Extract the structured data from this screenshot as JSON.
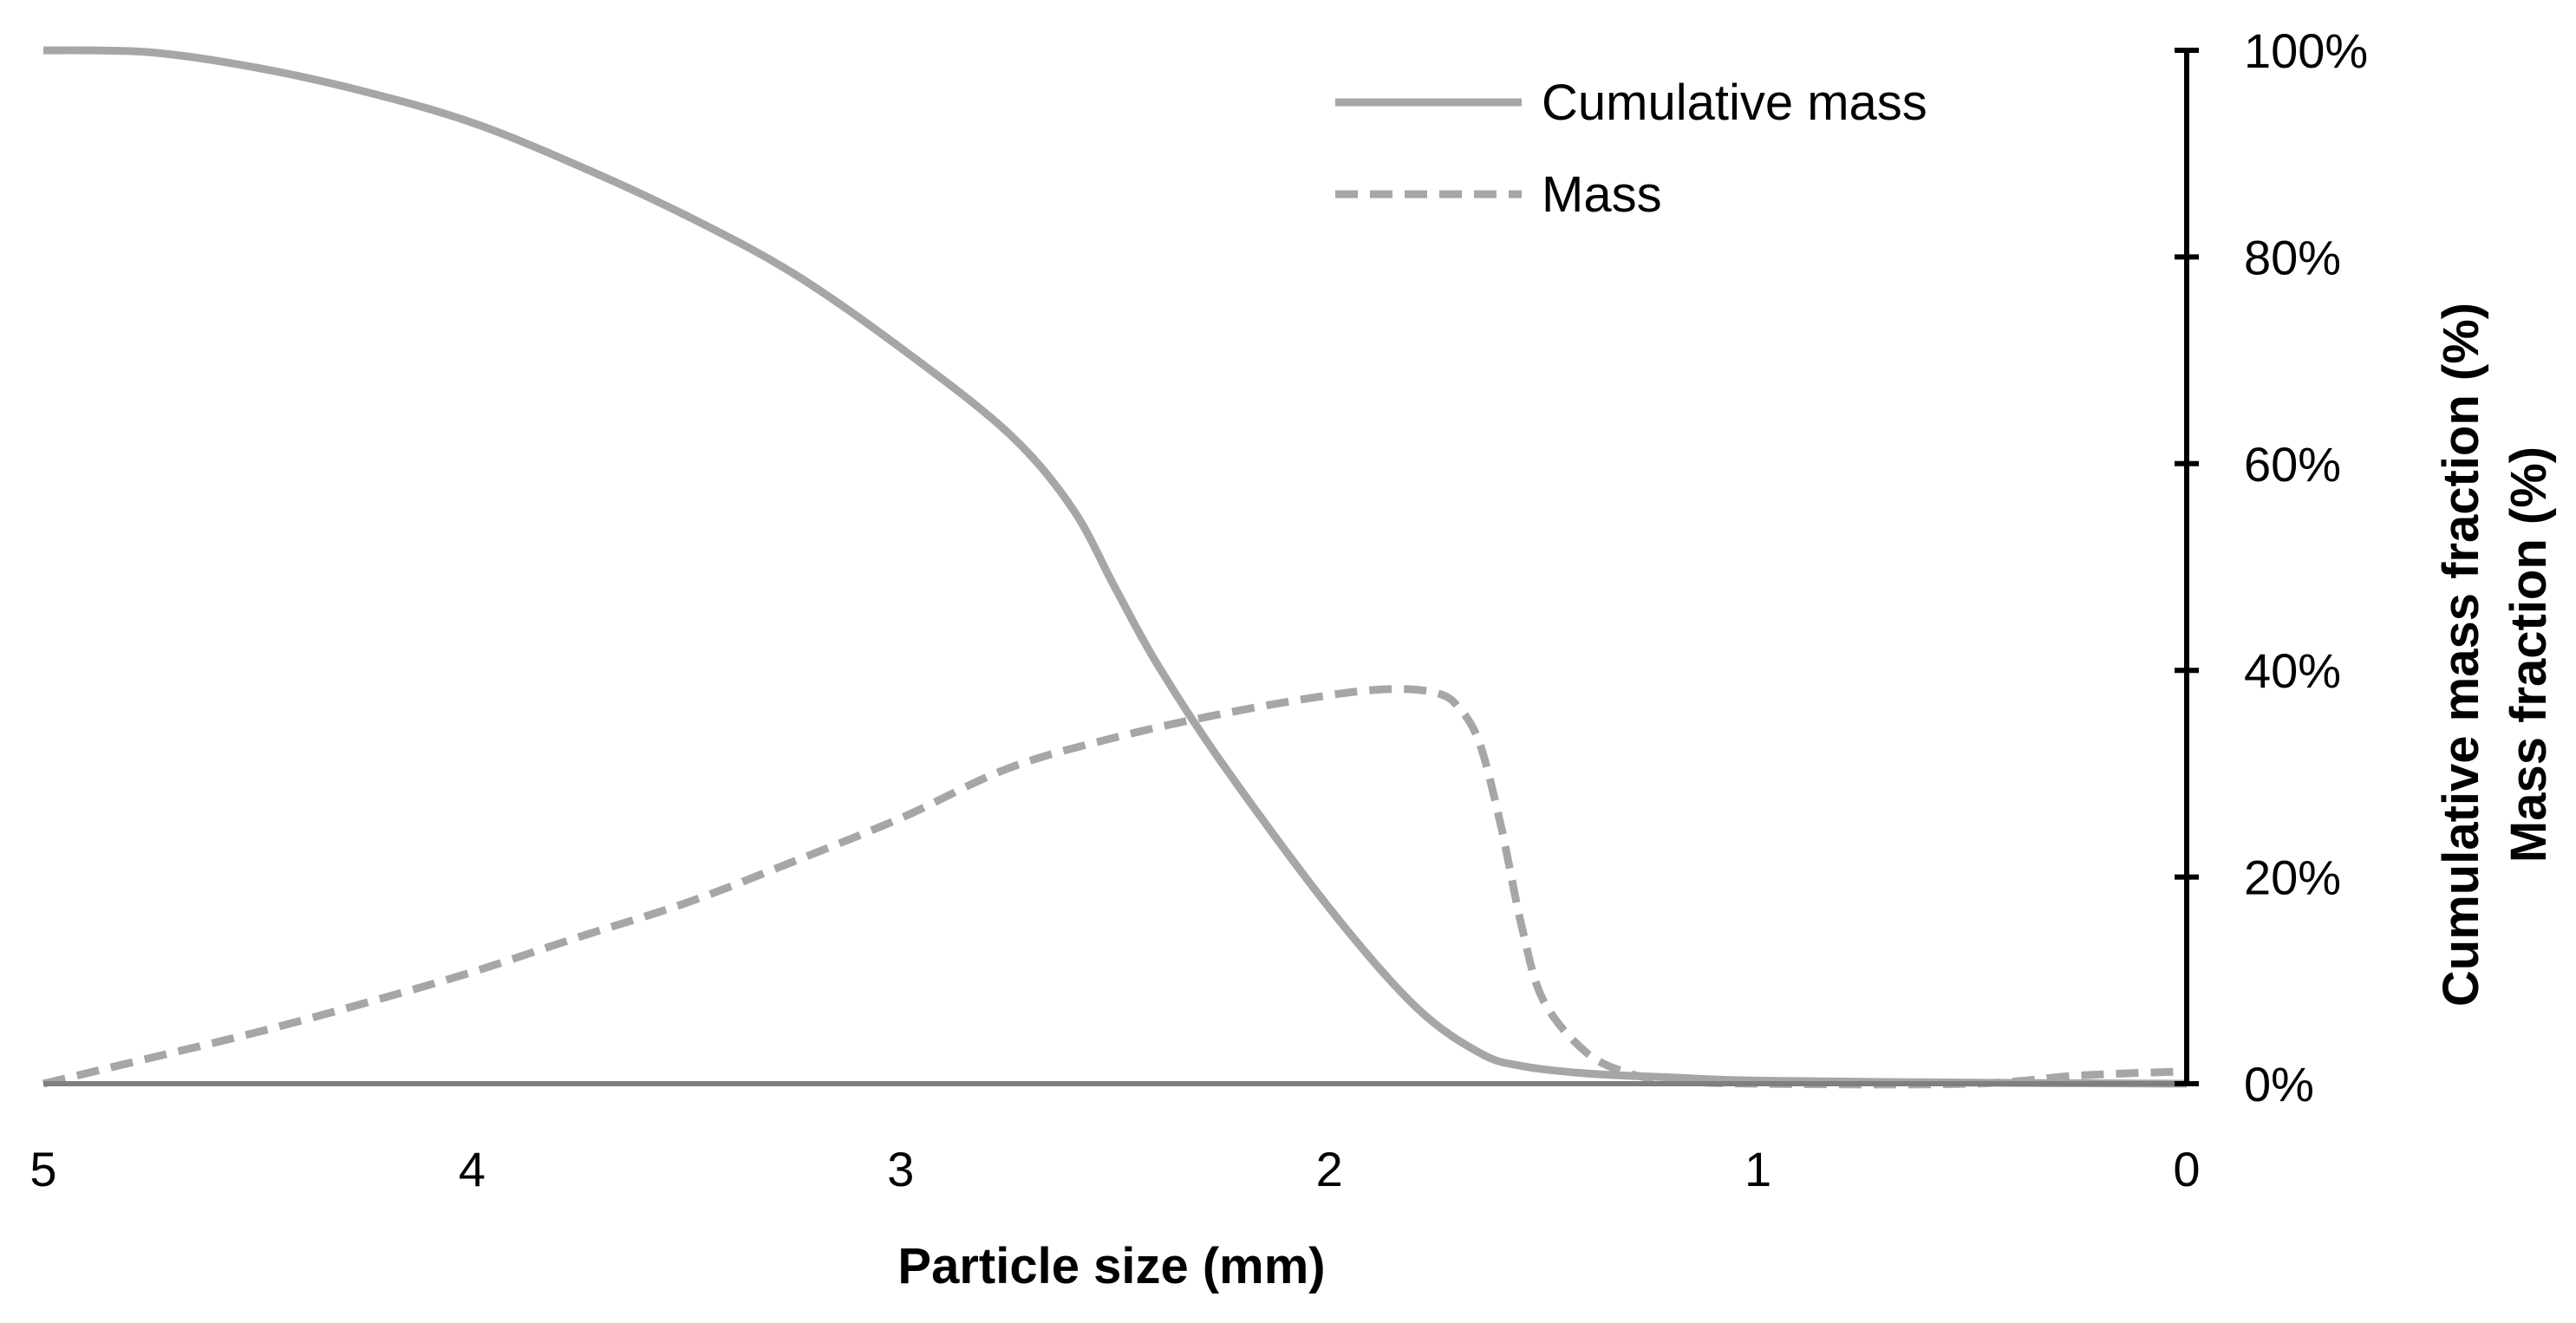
{
  "chart_data": {
    "type": "line",
    "title": "",
    "xlabel": "Particle size (mm)",
    "ylabel_lines": [
      "Cumulative mass fraction (%)",
      "Mass fraction (%)"
    ],
    "xlim": [
      5,
      0
    ],
    "x_reversed": true,
    "ylim": [
      0,
      100
    ],
    "y_axis_position": "right",
    "x_ticks": [
      5,
      4,
      3,
      2,
      1,
      0
    ],
    "x_tick_labels": [
      "5",
      "4",
      "3",
      "2",
      "1",
      "0"
    ],
    "y_ticks": [
      0,
      20,
      40,
      60,
      80,
      100
    ],
    "y_tick_labels": [
      "0%",
      "20%",
      "40%",
      "60%",
      "80%",
      "100%"
    ],
    "grid": false,
    "legend_position": "top-right",
    "colors": {
      "series": "#a6a6a6",
      "axis": "#000000",
      "baseline": "#7f7f7f"
    },
    "series": [
      {
        "name": "Cumulative mass",
        "style": "solid",
        "x": [
          5.0,
          4.75,
          4.5,
          4.25,
          4.0,
          3.75,
          3.5,
          3.25,
          3.0,
          2.75,
          2.6,
          2.5,
          2.4,
          2.25,
          2.0,
          1.8,
          1.65,
          1.55,
          1.4,
          1.2,
          1.0,
          0.5,
          0.0
        ],
        "values": [
          100,
          99.8,
          98.3,
          96.0,
          93.0,
          88.8,
          84.0,
          78.4,
          71.2,
          63.0,
          55.7,
          48.0,
          40.5,
          31.0,
          17.0,
          7.5,
          3.0,
          1.7,
          1.0,
          0.6,
          0.3,
          0.1,
          0.0
        ]
      },
      {
        "name": "Mass",
        "style": "dashed",
        "x": [
          5.0,
          4.75,
          4.5,
          4.25,
          4.0,
          3.75,
          3.5,
          3.25,
          3.0,
          2.75,
          2.5,
          2.25,
          2.0,
          1.85,
          1.75,
          1.7,
          1.65,
          1.6,
          1.55,
          1.5,
          1.4,
          1.3,
          1.2,
          1.0,
          0.5,
          0.25,
          0.0
        ],
        "values": [
          0.0,
          2.5,
          5.0,
          7.8,
          10.8,
          14.2,
          17.5,
          21.5,
          25.7,
          30.5,
          33.5,
          35.8,
          37.6,
          38.2,
          37.8,
          36.5,
          33.0,
          25.0,
          15.0,
          8.0,
          3.0,
          1.0,
          0.3,
          0.0,
          0.0,
          0.8,
          1.2
        ]
      }
    ]
  }
}
